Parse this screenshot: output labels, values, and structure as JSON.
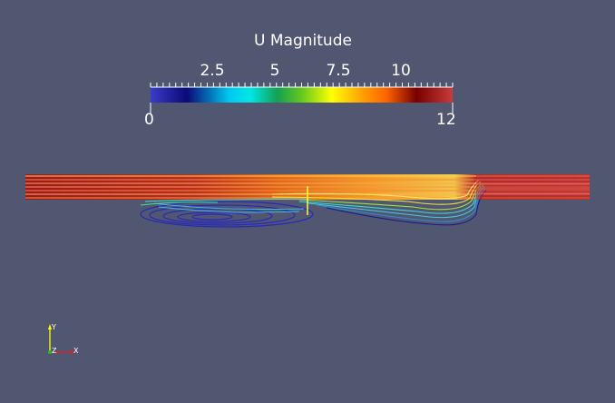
{
  "colorbar": {
    "title": "U Magnitude",
    "min": 0,
    "max": 12,
    "min_label": "0",
    "max_label": "12",
    "ticks": [
      {
        "value": 2.5,
        "label": "2.5"
      },
      {
        "value": 5,
        "label": "5"
      },
      {
        "value": 7.5,
        "label": "7.5"
      },
      {
        "value": 10,
        "label": "10"
      }
    ],
    "colormap": [
      "#3b3cc8",
      "#0a0a78",
      "#00c8f0",
      "#00e6e6",
      "#14a050",
      "#64c81e",
      "#ffff00",
      "#ffa000",
      "#ff6400",
      "#780000",
      "#c83c3c"
    ]
  },
  "axes_triad": {
    "y_label": "Y",
    "z_label": "Z",
    "x_label": "X"
  },
  "colors": {
    "background": "#525771",
    "stream_red": "#b0201c",
    "stream_yellow": "#ffe070",
    "stream_cyan": "#40d8d0",
    "stream_blue": "#2828b8"
  }
}
